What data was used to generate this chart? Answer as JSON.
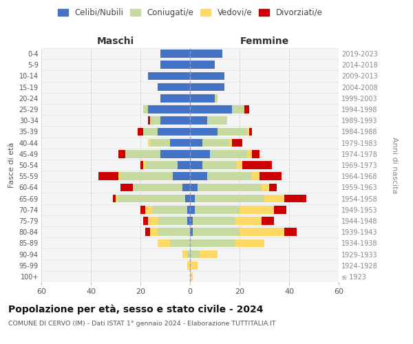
{
  "age_groups": [
    "100+",
    "95-99",
    "90-94",
    "85-89",
    "80-84",
    "75-79",
    "70-74",
    "65-69",
    "60-64",
    "55-59",
    "50-54",
    "45-49",
    "40-44",
    "35-39",
    "30-34",
    "25-29",
    "20-24",
    "15-19",
    "10-14",
    "5-9",
    "0-4"
  ],
  "birth_years": [
    "≤ 1923",
    "1924-1928",
    "1929-1933",
    "1934-1938",
    "1939-1943",
    "1944-1948",
    "1949-1953",
    "1954-1958",
    "1959-1963",
    "1964-1968",
    "1969-1973",
    "1974-1978",
    "1979-1983",
    "1984-1988",
    "1989-1993",
    "1994-1998",
    "1999-2003",
    "2004-2008",
    "2009-2013",
    "2014-2018",
    "2019-2023"
  ],
  "males_celibi": [
    0,
    0,
    0,
    0,
    0,
    1,
    1,
    2,
    3,
    7,
    5,
    12,
    8,
    13,
    12,
    17,
    12,
    13,
    17,
    12,
    12
  ],
  "males_coniugati": [
    0,
    0,
    1,
    8,
    13,
    12,
    14,
    27,
    20,
    21,
    13,
    14,
    8,
    6,
    4,
    2,
    0,
    0,
    0,
    0,
    0
  ],
  "males_vedovi": [
    0,
    1,
    2,
    5,
    3,
    4,
    3,
    1,
    0,
    1,
    1,
    0,
    1,
    0,
    0,
    0,
    0,
    0,
    0,
    0,
    0
  ],
  "males_divorziati": [
    0,
    0,
    0,
    0,
    2,
    2,
    2,
    1,
    5,
    8,
    1,
    3,
    0,
    2,
    1,
    0,
    0,
    0,
    0,
    0,
    0
  ],
  "females_nubili": [
    0,
    0,
    0,
    0,
    1,
    1,
    2,
    2,
    3,
    7,
    5,
    8,
    5,
    11,
    7,
    17,
    10,
    14,
    14,
    10,
    13
  ],
  "females_coniugate": [
    0,
    0,
    4,
    18,
    19,
    17,
    18,
    28,
    26,
    18,
    14,
    15,
    11,
    12,
    8,
    5,
    1,
    0,
    0,
    0,
    0
  ],
  "females_vedove": [
    1,
    3,
    7,
    12,
    18,
    11,
    14,
    8,
    3,
    3,
    2,
    2,
    1,
    1,
    0,
    0,
    0,
    0,
    0,
    0,
    0
  ],
  "females_divorziate": [
    0,
    0,
    0,
    0,
    5,
    5,
    5,
    9,
    3,
    9,
    12,
    3,
    4,
    1,
    0,
    2,
    0,
    0,
    0,
    0,
    0
  ],
  "color_celibi": "#4472C4",
  "color_coniugati": "#c5d9a0",
  "color_vedovi": "#FFD966",
  "color_divorziati": "#CC0000",
  "xlim": 60,
  "title": "Popolazione per età, sesso e stato civile - 2024",
  "subtitle": "COMUNE DI CERVO (IM) - Dati ISTAT 1° gennaio 2024 - Elaborazione TUTTITALIA.IT",
  "ylabel": "Fasce di età",
  "ylabel_right": "Anni di nascita",
  "label_maschi": "Maschi",
  "label_femmine": "Femmine",
  "legend_labels": [
    "Celibi/Nubili",
    "Coniugati/e",
    "Vedovi/e",
    "Divorziati/e"
  ],
  "bg_color": "#f5f5f5"
}
